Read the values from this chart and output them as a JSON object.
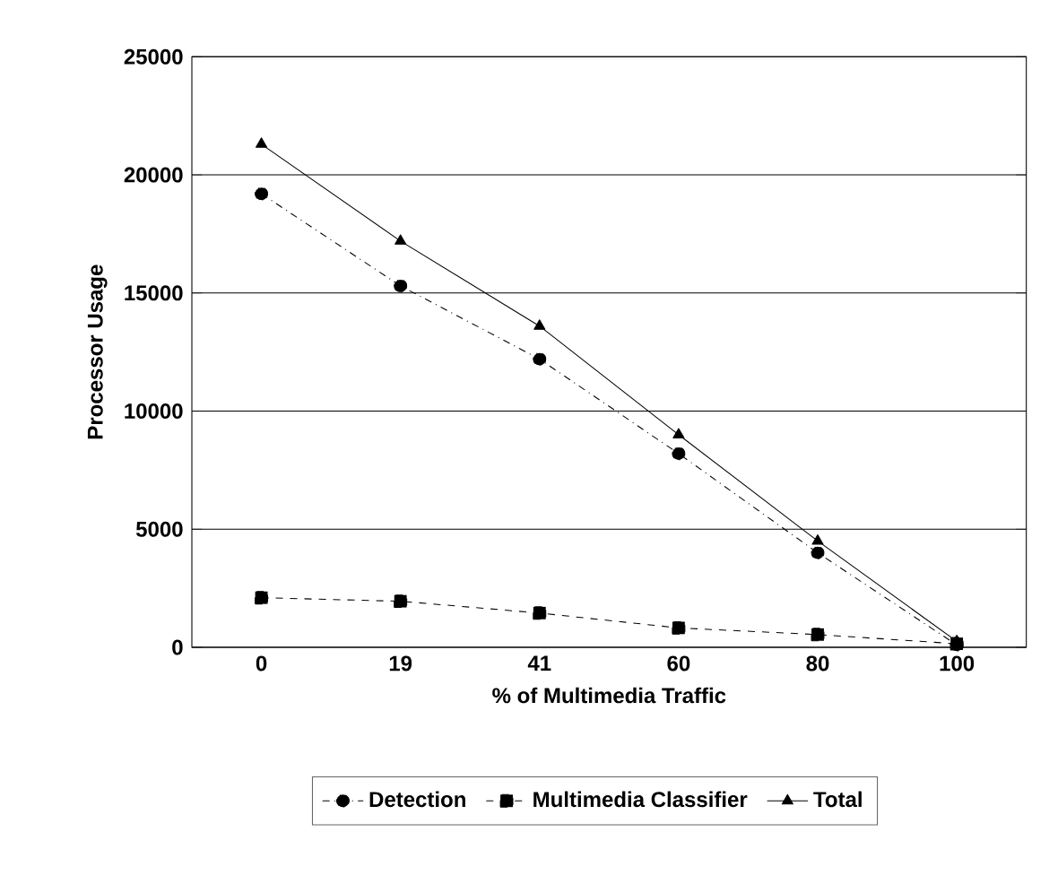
{
  "chart_data": {
    "type": "line",
    "xlabel": "% of Multimedia Traffic",
    "ylabel": "Processor Usage",
    "categories": [
      "0",
      "19",
      "41",
      "60",
      "80",
      "100"
    ],
    "series": [
      {
        "name": "Detection",
        "color": "#000000",
        "marker": "circle",
        "line_style": "dashdot",
        "values": [
          19200,
          15300,
          12200,
          8200,
          4000,
          100
        ]
      },
      {
        "name": "Multimedia Classifier",
        "color": "#000000",
        "marker": "square",
        "line_style": "dashed",
        "values": [
          2100,
          1950,
          1450,
          820,
          540,
          150
        ]
      },
      {
        "name": "Total",
        "color": "#000000",
        "marker": "triangle",
        "line_style": "solid",
        "values": [
          21300,
          17200,
          13600,
          9000,
          4500,
          250
        ]
      }
    ],
    "ylim": [
      0,
      25000
    ],
    "yticks": [
      0,
      5000,
      10000,
      15000,
      20000,
      25000
    ],
    "grid": "y",
    "legend": "bottom"
  }
}
